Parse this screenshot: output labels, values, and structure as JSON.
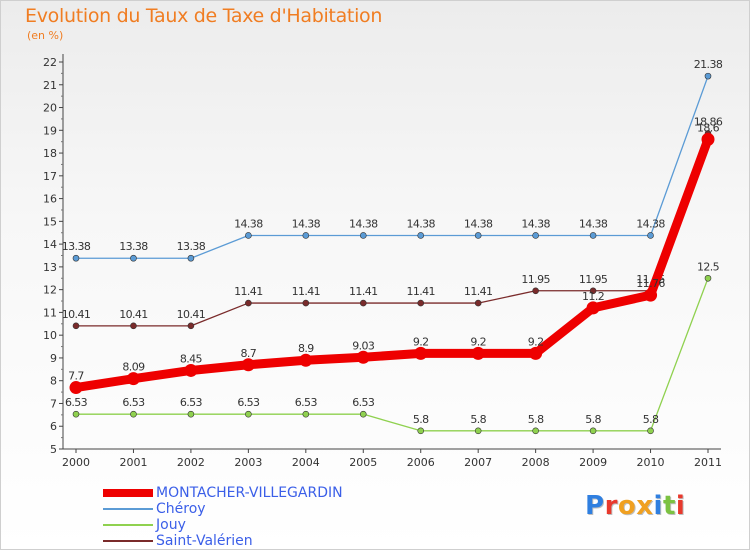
{
  "title": "Evolution du Taux de Taxe d'Habitation",
  "unit": "(en %)",
  "logo": {
    "text": "Proxiti",
    "letter_colors": [
      "#2f7fe0",
      "#e8392d",
      "#f0a020",
      "#f0a020",
      "#2f7fe0",
      "#7cc242",
      "#e8392d"
    ]
  },
  "chart_data": {
    "type": "line",
    "x": [
      "2000",
      "2001",
      "2002",
      "2003",
      "2004",
      "2005",
      "2006",
      "2007",
      "2008",
      "2009",
      "2010",
      "2011"
    ],
    "ylim": [
      5,
      22
    ],
    "yticks": [
      5,
      6,
      7,
      8,
      9,
      10,
      11,
      12,
      13,
      14,
      15,
      16,
      17,
      18,
      19,
      20,
      21,
      22
    ],
    "grid": false,
    "legend_position": "bottom-left",
    "series": [
      {
        "name": "Chéroy",
        "color": "#5b9bd5",
        "values": [
          13.38,
          13.38,
          13.38,
          14.38,
          14.38,
          14.38,
          14.38,
          14.38,
          14.38,
          14.38,
          14.38,
          21.38
        ],
        "labels": [
          "13.38",
          "13.38",
          "13.38",
          "14.38",
          "14.38",
          "14.38",
          "14.38",
          "14.38",
          "14.38",
          "14.38",
          "14.38",
          "21.38"
        ]
      },
      {
        "name": "Jouy",
        "color": "#8fd14f",
        "values": [
          6.53,
          6.53,
          6.53,
          6.53,
          6.53,
          6.53,
          5.8,
          5.8,
          5.8,
          5.8,
          5.8,
          12.5
        ],
        "labels": [
          "6.53",
          "6.53",
          "6.53",
          "6.53",
          "6.53",
          "6.53",
          "5.8",
          "5.8",
          "5.8",
          "5.8",
          "5.8",
          "12.5"
        ]
      },
      {
        "name": "Saint-Valérien",
        "color": "#7a2b2b",
        "values": [
          10.41,
          10.41,
          10.41,
          11.41,
          11.41,
          11.41,
          11.41,
          11.41,
          11.95,
          11.95,
          11.95,
          18.86
        ],
        "labels": [
          "10.41",
          "10.41",
          "10.41",
          "11.41",
          "11.41",
          "11.41",
          "11.41",
          "11.41",
          "11.95",
          "11.95",
          "11.95",
          "18.86"
        ]
      },
      {
        "name": "MONTACHER-VILLEGARDIN",
        "color": "#ee0000",
        "values": [
          7.7,
          8.09,
          8.45,
          8.7,
          8.9,
          9.03,
          9.2,
          9.2,
          9.2,
          11.2,
          11.76,
          18.6
        ],
        "labels": [
          "7.7",
          "8.09",
          "8.45",
          "8.7",
          "8.9",
          "9.03",
          "9.2",
          "9.2",
          "9.2",
          "11.2",
          "11.76",
          "18.6"
        ]
      }
    ],
    "legend_order": [
      "MONTACHER-VILLEGARDIN",
      "Chéroy",
      "Jouy",
      "Saint-Valérien"
    ]
  }
}
